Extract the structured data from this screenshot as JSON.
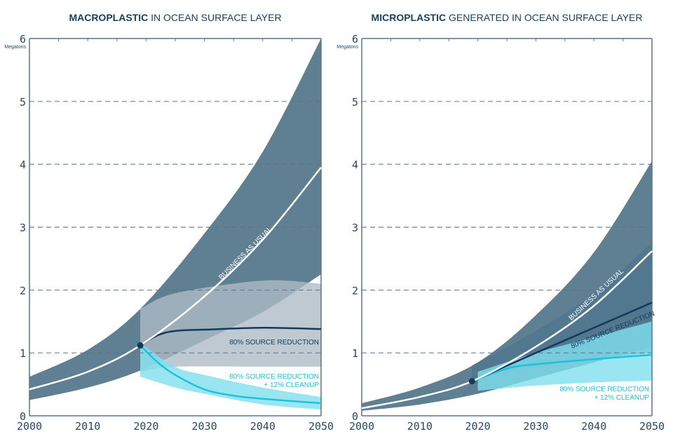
{
  "chart_data": [
    {
      "type": "area",
      "title_bold": "MACROPLASTIC",
      "title_rest": " IN OCEAN SURFACE LAYER",
      "ylabel": "Megatons",
      "xlim": [
        2000,
        2050
      ],
      "ylim": [
        0,
        6
      ],
      "xticks": [
        2000,
        2010,
        2020,
        2030,
        2040,
        2050
      ],
      "yticks": [
        0,
        1,
        2,
        3,
        4,
        5,
        6
      ],
      "grid": "dashed horizontal",
      "series": [
        {
          "name": "BUSINESS AS USUAL",
          "color": "#ffffff",
          "band_color": "#5f7f93",
          "x": [
            2000,
            2010,
            2019,
            2030,
            2040,
            2050
          ],
          "y": [
            0.42,
            0.7,
            1.12,
            1.9,
            2.8,
            3.95
          ],
          "band_x": [
            2000,
            2010,
            2019,
            2030,
            2040,
            2050
          ],
          "band_low": [
            0.25,
            0.45,
            0.72,
            1.2,
            1.65,
            2.25
          ],
          "band_high": [
            0.62,
            1.05,
            1.7,
            2.9,
            4.2,
            6.0
          ]
        },
        {
          "name": "80% SOURCE REDUCTION",
          "color": "#123a5a",
          "band_color": "#aebcc7",
          "x": [
            2019,
            2022,
            2025,
            2030,
            2040,
            2050
          ],
          "y": [
            1.12,
            1.28,
            1.35,
            1.37,
            1.4,
            1.38
          ],
          "band_x": [
            2019,
            2025,
            2040,
            2050
          ],
          "band_low": [
            0.7,
            0.78,
            0.78,
            0.78
          ],
          "band_high": [
            1.7,
            1.95,
            2.15,
            2.1
          ]
        },
        {
          "name": "80% SOURCE REDUCTION + 12% CLEANUP",
          "label_lines": [
            "80% SOURCE REDUCTION",
            "+ 12% CLEANUP"
          ],
          "color": "#1bc3dc",
          "band_color": "#7fe0ef",
          "x": [
            2019,
            2022,
            2025,
            2030,
            2035,
            2040,
            2050
          ],
          "y": [
            1.12,
            0.85,
            0.65,
            0.42,
            0.32,
            0.27,
            0.2
          ],
          "band_x": [
            2019,
            2025,
            2030,
            2040,
            2050
          ],
          "band_low": [
            0.62,
            0.45,
            0.35,
            0.18,
            0.1
          ],
          "band_high": [
            1.15,
            0.78,
            0.65,
            0.45,
            0.3
          ]
        }
      ],
      "start_point": {
        "x": 2019,
        "y": 1.12
      }
    },
    {
      "type": "area",
      "title_bold": "MICROPLASTIC",
      "title_rest": " GENERATED IN OCEAN SURFACE LAYER",
      "ylabel": "Megatons",
      "xlim": [
        2000,
        2050
      ],
      "ylim": [
        0,
        6
      ],
      "xticks": [
        2000,
        2010,
        2020,
        2030,
        2040,
        2050
      ],
      "yticks": [
        0,
        1,
        2,
        3,
        4,
        5,
        6
      ],
      "grid": "dashed horizontal",
      "series": [
        {
          "name": "BUSINESS AS USUAL",
          "color": "#ffffff",
          "band_color": "#5f7f93",
          "x": [
            2000,
            2010,
            2019,
            2030,
            2040,
            2050
          ],
          "y": [
            0.12,
            0.3,
            0.55,
            1.1,
            1.75,
            2.62
          ],
          "band_x": [
            2000,
            2010,
            2020,
            2030,
            2040,
            2050
          ],
          "band_low": [
            0.08,
            0.18,
            0.35,
            0.6,
            0.85,
            1.1
          ],
          "band_high": [
            0.2,
            0.45,
            0.85,
            1.6,
            2.6,
            4.05
          ]
        },
        {
          "name": "80% SOURCE REDUCTION",
          "color": "#123a5a",
          "band_color": "#4f7790",
          "x": [
            2019,
            2030,
            2040,
            2050
          ],
          "y": [
            0.55,
            1.0,
            1.4,
            1.8
          ],
          "band_x": [
            2019,
            2030,
            2040,
            2050
          ],
          "band_low": [
            0.5,
            0.75,
            0.9,
            1.0
          ],
          "band_high": [
            0.8,
            1.35,
            1.95,
            2.75
          ]
        },
        {
          "name": "80% SOURCE REDUCTION + 12% CLEANUP",
          "label_lines": [
            "80% SOURCE REDUCTION",
            "+ 12% CLEANUP"
          ],
          "color": "#1bc3dc",
          "band_color": "#7fe0ef",
          "x": [
            2019,
            2025,
            2030,
            2040,
            2050
          ],
          "y": [
            0.55,
            0.75,
            0.82,
            0.9,
            0.97
          ],
          "band_x": [
            2020,
            2030,
            2040,
            2050
          ],
          "band_low": [
            0.4,
            0.48,
            0.53,
            0.56
          ],
          "band_high": [
            0.7,
            1.0,
            1.25,
            1.5
          ]
        }
      ],
      "start_point": {
        "x": 2019,
        "y": 0.55
      }
    }
  ]
}
